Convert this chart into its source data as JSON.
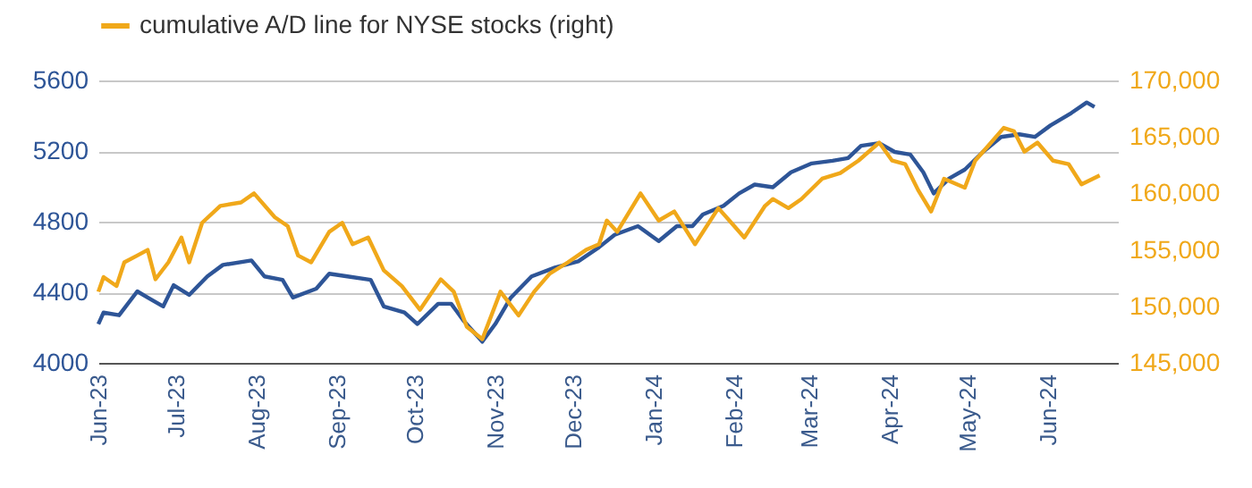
{
  "chart_data": {
    "type": "line",
    "xlim": [
      "2023-06-01",
      "2024-06-28"
    ],
    "xticks": [
      {
        "value": "2023-06",
        "label": "Jun-23"
      },
      {
        "value": "2023-07",
        "label": "Jul-23"
      },
      {
        "value": "2023-08",
        "label": "Aug-23"
      },
      {
        "value": "2023-09",
        "label": "Sep-23"
      },
      {
        "value": "2023-10",
        "label": "Oct-23"
      },
      {
        "value": "2023-11",
        "label": "Nov-23"
      },
      {
        "value": "2023-12",
        "label": "Dec-23"
      },
      {
        "value": "2024-01",
        "label": "Jan-24"
      },
      {
        "value": "2024-02",
        "label": "Feb-24"
      },
      {
        "value": "2024-03",
        "label": "Mar-24"
      },
      {
        "value": "2024-04",
        "label": "Apr-24"
      },
      {
        "value": "2024-05",
        "label": "May-24"
      },
      {
        "value": "2024-06",
        "label": "Jun-24"
      }
    ],
    "ylim": [
      4000,
      5600
    ],
    "yticks": [
      4000,
      4400,
      4800,
      5200,
      5600
    ],
    "y2lim": [
      145000,
      170000
    ],
    "y2ticks": [
      {
        "value": 145000,
        "label": "145,000"
      },
      {
        "value": 150000,
        "label": "150,000"
      },
      {
        "value": 155000,
        "label": "155,000"
      },
      {
        "value": 160000,
        "label": "160,000"
      },
      {
        "value": 165000,
        "label": "165,000"
      },
      {
        "value": 170000,
        "label": "170,000"
      }
    ],
    "grid": "y",
    "legend": "top left",
    "line_style": "solid",
    "marker": "none",
    "series": [
      {
        "color": "#2e5597",
        "x": [
          "2023-06-01",
          "2023-06-03",
          "2023-06-09",
          "2023-06-16",
          "2023-06-20",
          "2023-06-26",
          "2023-06-30",
          "2023-07-06",
          "2023-07-13",
          "2023-07-19",
          "2023-07-30",
          "2023-08-04",
          "2023-08-11",
          "2023-08-15",
          "2023-08-24",
          "2023-08-29",
          "2023-09-05",
          "2023-09-14",
          "2023-09-19",
          "2023-09-27",
          "2023-10-02",
          "2023-10-10",
          "2023-10-15",
          "2023-10-20",
          "2023-10-27",
          "2023-11-01",
          "2023-11-07",
          "2023-11-15",
          "2023-11-24",
          "2023-12-03",
          "2023-12-11",
          "2023-12-17",
          "2023-12-26",
          "2024-01-03",
          "2024-01-10",
          "2024-01-16",
          "2024-01-20",
          "2024-01-28",
          "2024-02-03",
          "2024-02-09",
          "2024-02-16",
          "2024-02-23",
          "2024-03-02",
          "2024-03-10",
          "2024-03-16",
          "2024-03-21",
          "2024-03-28",
          "2024-04-03",
          "2024-04-09",
          "2024-04-14",
          "2024-04-18",
          "2024-04-24",
          "2024-04-30",
          "2024-05-07",
          "2024-05-14",
          "2024-05-21",
          "2024-05-27",
          "2024-06-02",
          "2024-06-10",
          "2024-06-16",
          "2024-06-19"
        ],
        "values": [
          4220,
          4285,
          4270,
          4405,
          4370,
          4320,
          4440,
          4385,
          4490,
          4555,
          4580,
          4490,
          4470,
          4370,
          4420,
          4505,
          4490,
          4470,
          4320,
          4285,
          4220,
          4335,
          4335,
          4235,
          4120,
          4220,
          4370,
          4490,
          4540,
          4575,
          4655,
          4725,
          4775,
          4690,
          4775,
          4775,
          4840,
          4890,
          4960,
          5010,
          4995,
          5080,
          5130,
          5145,
          5160,
          5230,
          5245,
          5195,
          5180,
          5080,
          4960,
          5045,
          5095,
          5195,
          5280,
          5295,
          5280,
          5345,
          5415,
          5475,
          5450
        ]
      },
      {
        "name": "cumulative A/D line for NYSE stocks (right)",
        "color": "#f0a81a",
        "axis": "y2",
        "x": [
          "2023-06-01",
          "2023-06-03",
          "2023-06-08",
          "2023-06-11",
          "2023-06-16",
          "2023-06-20",
          "2023-06-23",
          "2023-06-28",
          "2023-07-03",
          "2023-07-06",
          "2023-07-11",
          "2023-07-18",
          "2023-07-26",
          "2023-07-31",
          "2023-08-08",
          "2023-08-13",
          "2023-08-17",
          "2023-08-22",
          "2023-08-29",
          "2023-09-03",
          "2023-09-07",
          "2023-09-13",
          "2023-09-19",
          "2023-09-26",
          "2023-10-03",
          "2023-10-11",
          "2023-10-16",
          "2023-10-21",
          "2023-10-27",
          "2023-11-03",
          "2023-11-10",
          "2023-11-16",
          "2023-11-22",
          "2023-11-29",
          "2023-12-06",
          "2023-12-11",
          "2023-12-14",
          "2023-12-18",
          "2023-12-27",
          "2024-01-03",
          "2024-01-09",
          "2024-01-17",
          "2024-01-26",
          "2024-01-31",
          "2024-02-05",
          "2024-02-13",
          "2024-02-16",
          "2024-02-22",
          "2024-02-27",
          "2024-03-06",
          "2024-03-13",
          "2024-03-20",
          "2024-03-28",
          "2024-04-02",
          "2024-04-07",
          "2024-04-12",
          "2024-04-17",
          "2024-04-22",
          "2024-04-30",
          "2024-05-04",
          "2024-05-09",
          "2024-05-15",
          "2024-05-19",
          "2024-05-23",
          "2024-05-28",
          "2024-06-03",
          "2024-06-09",
          "2024-06-14",
          "2024-06-21"
        ],
        "values": [
          151300,
          152600,
          151800,
          153900,
          154500,
          155000,
          152400,
          153900,
          156100,
          153900,
          157400,
          158900,
          159200,
          160000,
          157900,
          157100,
          154500,
          153900,
          156600,
          157400,
          155500,
          156100,
          153200,
          151800,
          149700,
          152400,
          151300,
          148200,
          147100,
          151300,
          149200,
          151300,
          152900,
          153900,
          155000,
          155500,
          157600,
          156600,
          160000,
          157600,
          158400,
          155500,
          158700,
          157400,
          156100,
          158900,
          159500,
          158700,
          159500,
          161300,
          161800,
          162900,
          164500,
          162900,
          162600,
          160300,
          158400,
          161300,
          160500,
          162900,
          164200,
          165800,
          165500,
          163700,
          164500,
          162900,
          162600,
          160800,
          161600
        ]
      }
    ]
  }
}
